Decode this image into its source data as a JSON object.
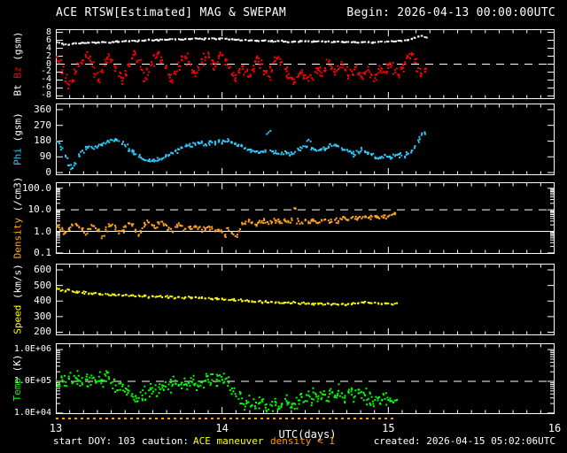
{
  "header": {
    "title": "ACE RTSW[Estimated] MAG & SWEPAM",
    "begin": "Begin: 2026-04-13 00:00:00UTC"
  },
  "footer": {
    "start_doy": "start DOY: 103",
    "caution_label": "caution:",
    "maneuver": "ACE maneuver",
    "density_flag": "density < 1",
    "created": "created: 2026-04-15 05:02:06UTC"
  },
  "colors": {
    "bt": "#ffffff",
    "bz": "#ff0000",
    "phi": "#33ccff",
    "density": "#ffa520",
    "speed": "#ffff00",
    "temp": "#00ff00",
    "frame": "#ffffff",
    "caution_strip": "#ff9900"
  },
  "chart_data": {
    "type": "scatter",
    "x_axis": {
      "label": "UTC(days)",
      "xlim": [
        13,
        16
      ],
      "ticks": [
        13,
        14,
        15,
        16
      ],
      "minor_step_days": 0.083333
    },
    "caution_strip": {
      "start_day": 13.0,
      "end_day": 15.05
    },
    "panels": [
      {
        "name": "bt-bz",
        "scale": "linear",
        "ylim": [
          -8,
          8
        ],
        "yrange_draw": [
          -8.8,
          8.8
        ],
        "label_parts": [
          {
            "text": "Bt",
            "color": "#ffffff"
          },
          {
            "text": "Bz",
            "color": "#ff0000"
          },
          {
            "text": "(gsm)",
            "color": "#ffffff"
          }
        ],
        "tick_font": 10,
        "yticks": [
          {
            "v": 8,
            "t": "8"
          },
          {
            "v": 6,
            "t": "6"
          },
          {
            "v": 4,
            "t": "4"
          },
          {
            "v": 2,
            "t": "2"
          },
          {
            "v": 0,
            "t": "0"
          },
          {
            "v": -2,
            "t": "-2"
          },
          {
            "v": -4,
            "t": "-4"
          },
          {
            "v": -6,
            "t": "-6"
          },
          {
            "v": -8,
            "t": "-8"
          }
        ],
        "ref_lines": [
          {
            "v": 0,
            "style": "dashed",
            "color": "#ffffff"
          }
        ],
        "series": [
          {
            "name": "Bt",
            "color": "#ffffff",
            "t0": 13,
            "dt": 0.02,
            "spread": 0.12,
            "extra_dots": 1,
            "values": [
              5.3,
              5.4,
              5.2,
              5.0,
              4.9,
              5.1,
              5.3,
              5.2,
              5.4,
              5.3,
              5.4,
              5.5,
              5.3,
              5.4,
              5.6,
              5.5,
              5.4,
              5.6,
              5.7,
              5.6,
              5.7,
              5.8,
              5.7,
              5.9,
              5.8,
              6.0,
              5.9,
              6.0,
              6.1,
              6.0,
              6.1,
              6.0,
              6.2,
              6.1,
              6.2,
              6.3,
              6.2,
              6.3,
              6.2,
              6.4,
              6.3,
              6.4,
              6.5,
              6.4,
              6.3,
              6.5,
              6.4,
              6.5,
              6.3,
              6.4,
              6.5,
              6.4,
              6.2,
              6.3,
              6.1,
              6.2,
              6.0,
              6.1,
              5.9,
              6.0,
              5.9,
              5.8,
              5.9,
              6.0,
              5.8,
              5.9,
              5.7,
              5.8,
              5.9,
              5.7,
              5.5,
              5.6,
              5.7,
              5.6,
              5.8,
              5.7,
              5.8,
              5.6,
              5.7,
              5.8,
              5.7,
              5.6,
              5.7,
              5.5,
              5.6,
              5.7,
              5.6,
              5.5,
              5.6,
              5.5,
              5.5,
              5.4,
              5.5,
              5.6,
              5.5,
              5.4,
              5.5,
              5.6,
              5.7,
              5.6,
              5.7,
              5.8,
              5.7,
              5.9,
              5.8,
              6.0,
              6.1,
              6.3,
              6.6,
              6.9,
              7.1,
              6.8
            ]
          },
          {
            "name": "Bz",
            "color": "#ff0000",
            "t0": 13,
            "dt": 0.02,
            "spread": 1.0,
            "extra_dots": 3,
            "values": [
              1.8,
              0.8,
              -1.5,
              -3.5,
              -5.2,
              -4.0,
              -2.0,
              -0.5,
              1.0,
              2.2,
              1.5,
              -0.5,
              -2.5,
              -3.8,
              -2.0,
              0.5,
              2.0,
              1.0,
              -1.0,
              -3.0,
              -4.2,
              -2.5,
              -0.5,
              1.5,
              2.5,
              1.0,
              -1.5,
              -3.5,
              -2.0,
              0.0,
              1.5,
              2.8,
              1.0,
              -1.0,
              -2.8,
              -4.0,
              -2.5,
              -0.5,
              1.0,
              2.0,
              0.5,
              -1.5,
              -3.0,
              -1.5,
              0.5,
              1.8,
              2.5,
              1.0,
              -0.5,
              1.5,
              2.2,
              0.8,
              -1.0,
              -2.5,
              -3.5,
              -2.0,
              -0.5,
              -2.0,
              -3.2,
              -1.5,
              0.5,
              1.5,
              0.0,
              -1.8,
              -3.0,
              -1.5,
              0.8,
              1.8,
              0.5,
              -1.2,
              -2.5,
              -3.8,
              -4.5,
              -3.0,
              -1.5,
              -2.8,
              -4.2,
              -3.5,
              -2.0,
              -1.0,
              -2.2,
              -1.0,
              0.5,
              -0.8,
              -2.0,
              -1.2,
              -0.2,
              -1.5,
              -2.8,
              -1.8,
              -0.8,
              -2.2,
              -3.2,
              -2.5,
              -1.5,
              -2.8,
              -3.5,
              -2.2,
              -1.2,
              -2.0,
              -1.0,
              -0.2,
              -1.5,
              -2.5,
              -1.2,
              0.5,
              1.8,
              2.8,
              1.2,
              -1.0,
              -2.5,
              -1.2
            ]
          }
        ]
      },
      {
        "name": "phi",
        "scale": "linear",
        "ylim": [
          0,
          360
        ],
        "yrange_draw": [
          -15,
          395
        ],
        "label_parts": [
          {
            "text": "Phi",
            "color": "#33ccff"
          },
          {
            "text": "(gsm)",
            "color": "#ffffff"
          }
        ],
        "tick_font": 11,
        "yticks": [
          {
            "v": 360,
            "t": "360"
          },
          {
            "v": 270,
            "t": "270"
          },
          {
            "v": 180,
            "t": "180"
          },
          {
            "v": 90,
            "t": "90"
          },
          {
            "v": 0,
            "t": "0"
          }
        ],
        "ref_lines": [],
        "series": [
          {
            "name": "Phi",
            "color": "#33ccff",
            "t0": 13,
            "dt": 0.02,
            "spread": 12,
            "extra_dots": 2,
            "values": [
              185,
              170,
              140,
              90,
              40,
              25,
              50,
              95,
              125,
              145,
              150,
              140,
              150,
              160,
              155,
              165,
              175,
              185,
              190,
              180,
              165,
              150,
              135,
              120,
              105,
              90,
              78,
              70,
              66,
              70,
              68,
              72,
              80,
              90,
              100,
              112,
              122,
              132,
              142,
              150,
              155,
              148,
              158,
              165,
              170,
              162,
              168,
              172,
              170,
              175,
              172,
              178,
              182,
              175,
              168,
              160,
              150,
              140,
              132,
              125,
              118,
              112,
              120,
              128,
              230,
              120,
              112,
              108,
              115,
              122,
              112,
              105,
              118,
              130,
              140,
              150,
              188,
              142,
              132,
              126,
              135,
              128,
              142,
              152,
              160,
              150,
              140,
              130,
              120,
              110,
              100,
              118,
              130,
              122,
              112,
              100,
              88,
              80,
              92,
              102,
              90,
              84,
              95,
              105,
              98,
              92,
              108,
              125,
              150,
              185,
              215,
              230
            ]
          }
        ]
      },
      {
        "name": "density",
        "scale": "log",
        "ylim": [
          0.1,
          100
        ],
        "yrange_draw": [
          0.09,
          190
        ],
        "label_parts": [
          {
            "text": "Density",
            "color": "#ffa520"
          },
          {
            "text": "(/cm3)",
            "color": "#ffffff"
          }
        ],
        "tick_font": 11,
        "yticks": [
          {
            "v": 100,
            "t": "100.0"
          },
          {
            "v": 10,
            "t": "10.0"
          },
          {
            "v": 1,
            "t": "1.0"
          },
          {
            "v": 0.1,
            "t": "0.1"
          }
        ],
        "ref_lines": [
          {
            "v": 10,
            "style": "dashed",
            "color": "#ffffff"
          },
          {
            "v": 1,
            "style": "solid",
            "color": "#ffffff"
          }
        ],
        "series": [
          {
            "name": "Density",
            "color": "#ffa520",
            "t0": 13,
            "dt": 0.02,
            "spread": 0.12,
            "extra_dots": 2,
            "values": [
              1.8,
              1.5,
              1.2,
              0.9,
              1.4,
              1.9,
              2.2,
              1.6,
              1.1,
              0.7,
              1.3,
              1.8,
              1.4,
              1.0,
              0.6,
              1.2,
              1.7,
              2.1,
              1.5,
              0.8,
              1.1,
              1.6,
              2.3,
              1.8,
              1.2,
              0.7,
              1.4,
              2.0,
              2.6,
              1.9,
              1.4,
              2.2,
              2.8,
              2.1,
              1.5,
              1.0,
              1.6,
              2.4,
              1.8,
              1.3,
              1.6,
              1.3,
              1.8,
              1.5,
              1.2,
              1.4,
              1.7,
              1.3,
              1.0,
              1.2,
              0.9,
              0.7,
              1.1,
              0.8,
              0.6,
              1.0,
              2.5,
              2.2,
              2.8,
              2.4,
              2.1,
              2.6,
              3.0,
              2.5,
              2.2,
              2.7,
              3.2,
              2.8,
              2.4,
              3.0,
              2.6,
              3.3,
              12.0,
              3.0,
              2.6,
              3.2,
              2.8,
              3.5,
              3.0,
              2.5,
              3.1,
              3.6,
              3.2,
              2.8,
              3.4,
              3.0,
              3.6,
              4.0,
              3.5,
              4.2,
              3.8,
              4.4,
              4.0,
              4.6,
              4.2,
              4.8,
              5.2,
              4.6,
              5.0,
              5.5,
              5.0,
              5.8,
              6.2
            ]
          }
        ]
      },
      {
        "name": "speed",
        "scale": "linear",
        "ylim": [
          200,
          600
        ],
        "yrange_draw": [
          180,
          640
        ],
        "label_parts": [
          {
            "text": "Speed",
            "color": "#ffff00"
          },
          {
            "text": "(km/s)",
            "color": "#ffffff"
          }
        ],
        "tick_font": 11,
        "yticks": [
          {
            "v": 600,
            "t": "600"
          },
          {
            "v": 500,
            "t": "500"
          },
          {
            "v": 400,
            "t": "400"
          },
          {
            "v": 300,
            "t": "300"
          },
          {
            "v": 200,
            "t": "200"
          }
        ],
        "ref_lines": [],
        "series": [
          {
            "name": "Speed",
            "color": "#ffff00",
            "t0": 13,
            "dt": 0.02,
            "spread": 6,
            "extra_dots": 1,
            "values": [
              488,
              478,
              470,
              466,
              472,
              462,
              455,
              460,
              452,
              458,
              450,
              444,
              452,
              446,
              440,
              446,
              438,
              444,
              436,
              442,
              434,
              440,
              432,
              438,
              430,
              436,
              428,
              434,
              426,
              432,
              426,
              430,
              424,
              428,
              422,
              428,
              420,
              426,
              420,
              424,
              428,
              422,
              426,
              418,
              424,
              416,
              420,
              414,
              418,
              412,
              416,
              410,
              406,
              410,
              402,
              406,
              398,
              402,
              396,
              400,
              394,
              398,
              392,
              396,
              390,
              394,
              388,
              392,
              386,
              390,
              392,
              386,
              390,
              384,
              388,
              382,
              386,
              380,
              384,
              380,
              384,
              378,
              382,
              378,
              382,
              376,
              380,
              376,
              382,
              378,
              384,
              388,
              392,
              396,
              390,
              386,
              390,
              386,
              382,
              386,
              384,
              380,
              384
            ]
          }
        ]
      },
      {
        "name": "temp",
        "scale": "log",
        "ylim": [
          10000,
          1000000
        ],
        "yrange_draw": [
          9300,
          1580000
        ],
        "label_parts": [
          {
            "text": "Temp",
            "color": "#00ff00"
          },
          {
            "text": "(K)",
            "color": "#ffffff"
          }
        ],
        "tick_font": 10,
        "yticks": [
          {
            "v": 1000000,
            "t": "1.0E+06"
          },
          {
            "v": 100000,
            "t": "1.0E+05"
          },
          {
            "v": 10000,
            "t": "1.0E+04"
          }
        ],
        "ref_lines": [
          {
            "v": 100000,
            "style": "dashed",
            "color": "#ffffff"
          }
        ],
        "series": [
          {
            "name": "Temp",
            "color": "#00ff00",
            "t0": 13,
            "dt": 0.02,
            "spread": 0.22,
            "extra_dots": 3,
            "values": [
              100000,
              85000,
              110000,
              95000,
              120000,
              90000,
              130000,
              105000,
              80000,
              115000,
              95000,
              125000,
              100000,
              140000,
              110000,
              150000,
              120000,
              95000,
              75000,
              85000,
              70000,
              60000,
              50000,
              40000,
              34000,
              30000,
              36000,
              42000,
              52000,
              62000,
              55000,
              65000,
              75000,
              68000,
              80000,
              72000,
              85000,
              78000,
              90000,
              82000,
              88000,
              95000,
              85000,
              100000,
              92000,
              105000,
              95000,
              110000,
              98000,
              104000,
              112000,
              118000,
              90000,
              60000,
              40000,
              28000,
              20000,
              16000,
              22000,
              18000,
              14000,
              20000,
              26000,
              18000,
              13000,
              17000,
              23000,
              16000,
              20000,
              28000,
              22000,
              15000,
              19000,
              25000,
              32000,
              24000,
              36000,
              28000,
              42000,
              34000,
              30000,
              38000,
              32000,
              44000,
              36000,
              50000,
              42000,
              35000,
              46000,
              38000,
              34000,
              42000,
              30000,
              36000,
              28000,
              32000,
              26000,
              30000,
              25000,
              28000,
              26000,
              24000,
              25000
            ]
          }
        ]
      }
    ]
  }
}
